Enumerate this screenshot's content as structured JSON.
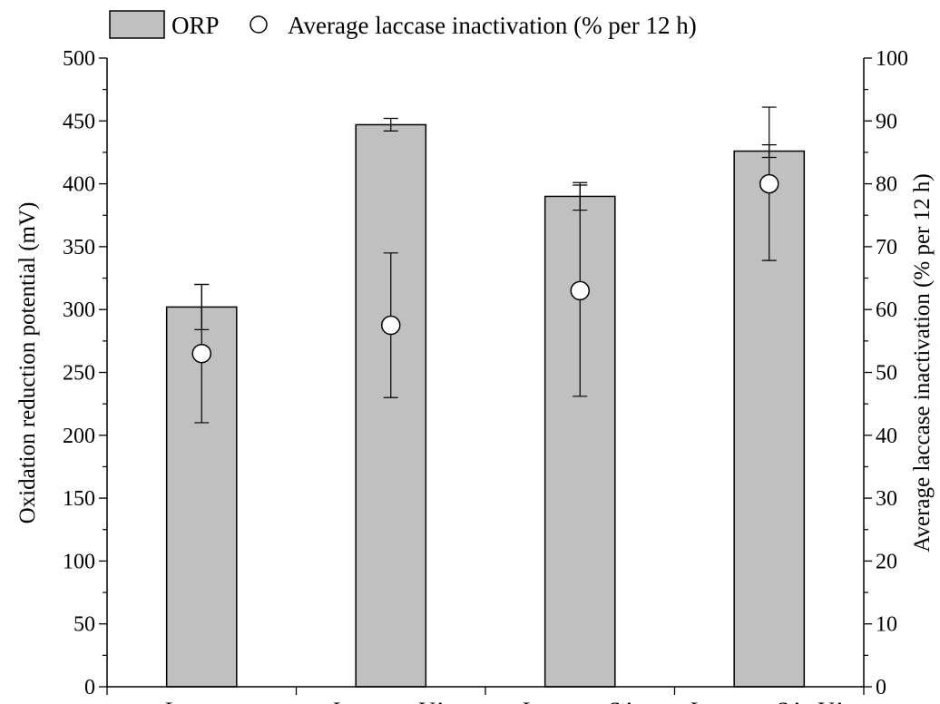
{
  "chart_data": {
    "type": "bar",
    "categories": [
      "Laccase",
      "Laccase+VA",
      "Laccase+SA",
      "Laccase+SA+VA"
    ],
    "series": [
      {
        "name": "ORP",
        "kind": "bar",
        "axis": "left",
        "values": [
          302,
          447,
          390,
          426
        ],
        "errors": [
          18,
          5,
          11,
          5
        ],
        "color": "#c0c0c0"
      },
      {
        "name": "Average laccase inactivation (% per 12 h)",
        "kind": "scatter",
        "axis": "right",
        "marker": "open-circle",
        "values": [
          53,
          57.5,
          63,
          80
        ],
        "errors": [
          11,
          11.5,
          16.8,
          12.2
        ]
      }
    ],
    "ylabel": "Oxidation reduction potential (mV)",
    "ylim": [
      0,
      500
    ],
    "yticks": [
      0,
      50,
      100,
      150,
      200,
      250,
      300,
      350,
      400,
      450,
      500
    ],
    "y2label": "Average laccase inactivation (% per 12 h)",
    "y2lim": [
      0,
      100
    ],
    "y2ticks": [
      0,
      10,
      20,
      30,
      40,
      50,
      60,
      70,
      80,
      90,
      100
    ],
    "legend": {
      "placement": "top"
    },
    "colors": {
      "bar_fill": "#c0c0c0",
      "stroke": "#000000",
      "marker_fill": "#ffffff"
    }
  }
}
